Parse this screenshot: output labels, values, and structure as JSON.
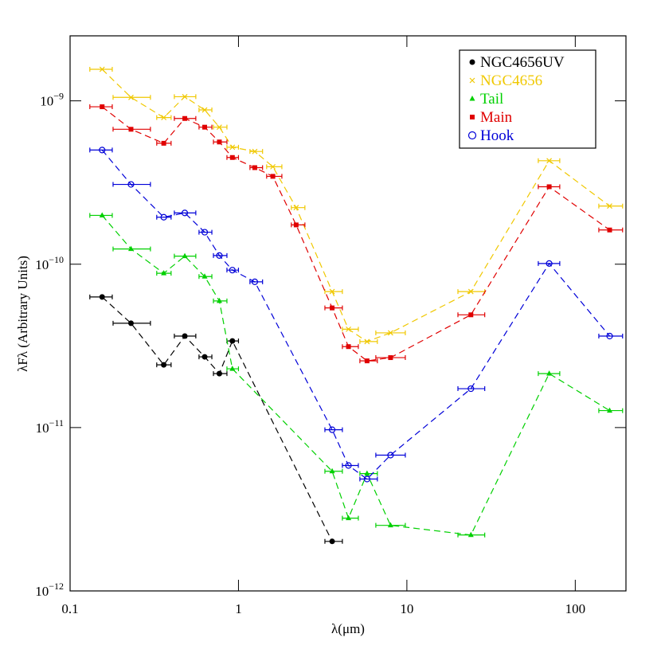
{
  "chart_data": {
    "type": "scatter",
    "xlabel": "λ(μm)",
    "ylabel": "λFλ (Arbitrary Units)",
    "log_x": true,
    "log_y": true,
    "legend": "upper right",
    "xlim": [
      0.1,
      200
    ],
    "ylim": [
      1e-12,
      2.5e-09
    ],
    "xticks": [
      0.1,
      1,
      10,
      100
    ],
    "yticks": [
      {
        "value": 1e-12,
        "label": "10",
        "exponent": "−12"
      },
      {
        "value": 1e-11,
        "label": "10",
        "exponent": "−11"
      },
      {
        "value": 1e-10,
        "label": "10",
        "exponent": "−10"
      },
      {
        "value": 1e-09,
        "label": "10",
        "exponent": "−9"
      }
    ],
    "series": [
      {
        "name": "NGC4656UV",
        "color": "#000000",
        "marker": "filled-circle",
        "x": [
          0.155,
          0.23,
          0.36,
          0.48,
          0.63,
          0.77,
          0.92,
          3.6
        ],
        "x_lo": [
          0.131,
          0.18,
          0.327,
          0.416,
          0.583,
          0.71,
          0.854,
          3.26
        ],
        "x_hi": [
          0.178,
          0.3,
          0.398,
          0.558,
          0.695,
          0.854,
          1.0,
          4.14
        ],
        "values": [
          6.3e-11,
          4.35e-11,
          2.42e-11,
          3.63e-11,
          2.71e-11,
          2.14e-11,
          3.39e-11,
          2.01e-12
        ]
      },
      {
        "name": "NGC4656",
        "color": "#f0c800",
        "marker": "cross",
        "x": [
          0.155,
          0.23,
          0.36,
          0.48,
          0.63,
          0.77,
          0.92,
          1.25,
          1.6,
          2.2,
          3.6,
          4.5,
          5.8,
          8.0,
          24,
          70,
          160
        ],
        "x_lo": [
          0.131,
          0.18,
          0.327,
          0.416,
          0.583,
          0.71,
          0.854,
          1.17,
          1.47,
          2.06,
          3.26,
          4.14,
          5.26,
          6.54,
          20.1,
          60.3,
          138
        ],
        "x_hi": [
          0.178,
          0.3,
          0.398,
          0.558,
          0.695,
          0.854,
          1.0,
          1.39,
          1.81,
          2.48,
          4.14,
          5.15,
          6.68,
          9.79,
          29.0,
          80.9,
          191
        ],
        "values": [
          1.56e-09,
          1.05e-09,
          7.9e-10,
          1.06e-09,
          8.8e-10,
          6.9e-10,
          5.2e-10,
          4.9e-10,
          3.95e-10,
          2.22e-10,
          6.8e-11,
          4e-11,
          3.36e-11,
          3.8e-11,
          6.8e-11,
          4.3e-10,
          2.27e-10
        ]
      },
      {
        "name": "Tail",
        "color": "#00d000",
        "marker": "triangle",
        "x": [
          0.155,
          0.23,
          0.36,
          0.48,
          0.63,
          0.77,
          0.92,
          3.6,
          4.5,
          5.8,
          8.0,
          24,
          70,
          160
        ],
        "x_lo": [
          0.131,
          0.18,
          0.327,
          0.416,
          0.583,
          0.71,
          0.854,
          3.26,
          4.14,
          5.26,
          6.54,
          20.1,
          60.3,
          138
        ],
        "x_hi": [
          0.178,
          0.3,
          0.398,
          0.558,
          0.695,
          0.854,
          1.0,
          4.14,
          5.15,
          6.68,
          9.79,
          29.0,
          80.9,
          191
        ],
        "values": [
          1.99e-10,
          1.24e-10,
          8.8e-11,
          1.12e-10,
          8.4e-11,
          5.96e-11,
          2.29e-11,
          5.4e-12,
          2.79e-12,
          5.23e-12,
          2.52e-12,
          2.2e-12,
          2.14e-11,
          1.27e-11
        ]
      },
      {
        "name": "Main",
        "color": "#e00000",
        "marker": "square",
        "x": [
          0.155,
          0.23,
          0.36,
          0.48,
          0.63,
          0.77,
          0.92,
          1.25,
          1.6,
          2.2,
          3.6,
          4.5,
          5.8,
          8.0,
          24,
          70,
          160
        ],
        "x_lo": [
          0.131,
          0.18,
          0.327,
          0.416,
          0.583,
          0.71,
          0.854,
          1.17,
          1.47,
          2.06,
          3.26,
          4.14,
          5.26,
          6.54,
          20.1,
          60.3,
          138
        ],
        "x_hi": [
          0.178,
          0.3,
          0.398,
          0.558,
          0.695,
          0.854,
          1.0,
          1.39,
          1.81,
          2.48,
          4.14,
          5.15,
          6.68,
          9.79,
          29.0,
          80.9,
          191
        ],
        "values": [
          9.2e-10,
          6.7e-10,
          5.5e-10,
          7.8e-10,
          6.9e-10,
          5.6e-10,
          4.5e-10,
          3.9e-10,
          3.45e-10,
          1.74e-10,
          5.4e-11,
          3.13e-11,
          2.56e-11,
          2.68e-11,
          4.9e-11,
          2.98e-10,
          1.62e-10
        ]
      },
      {
        "name": "Hook",
        "color": "#0000d8",
        "marker": "open-circle",
        "x": [
          0.155,
          0.23,
          0.36,
          0.48,
          0.63,
          0.77,
          0.92,
          1.25,
          3.6,
          4.5,
          5.8,
          8.0,
          24,
          70,
          160
        ],
        "x_lo": [
          0.131,
          0.18,
          0.327,
          0.416,
          0.583,
          0.71,
          0.854,
          1.17,
          3.26,
          4.14,
          5.26,
          6.54,
          20.1,
          60.3,
          138
        ],
        "x_hi": [
          0.178,
          0.3,
          0.398,
          0.558,
          0.695,
          0.854,
          1.0,
          1.39,
          4.14,
          5.15,
          6.68,
          9.79,
          29.0,
          80.9,
          191
        ],
        "values": [
          5e-10,
          3.08e-10,
          1.94e-10,
          2.06e-10,
          1.57e-10,
          1.13e-10,
          9.2e-11,
          7.8e-11,
          9.7e-12,
          5.86e-12,
          4.84e-12,
          6.78e-12,
          1.73e-11,
          1.01e-10,
          3.63e-11
        ]
      }
    ]
  }
}
